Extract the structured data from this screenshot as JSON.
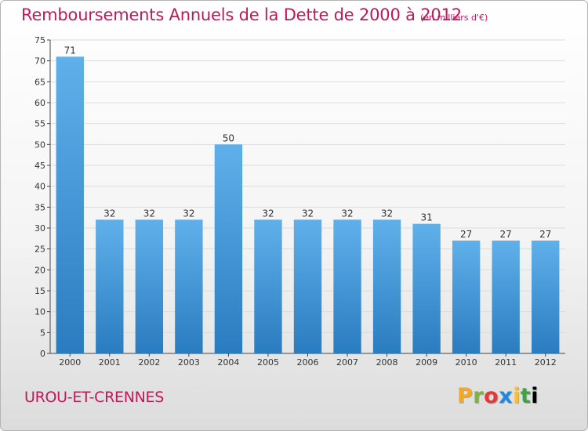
{
  "header": {
    "title": "Remboursements Annuels de la Dette de 2000 à 2012",
    "subtitle": "(en milliers d'€)"
  },
  "footer": {
    "commune": "UROU-ET-CRENNES",
    "logo_letters": [
      "P",
      "r",
      "o",
      "x",
      "i",
      "t",
      "i"
    ]
  },
  "colors": {
    "bar_top": "#5fb0ea",
    "bar_bottom": "#2a7cc0",
    "title": "#c2185b",
    "grid": "#dddddd"
  },
  "chart_data": {
    "type": "bar",
    "title": "Remboursements Annuels de la Dette de 2000 à 2012",
    "subtitle": "(en milliers d'€)",
    "categories": [
      "2000",
      "2001",
      "2002",
      "2003",
      "2004",
      "2005",
      "2006",
      "2007",
      "2008",
      "2009",
      "2010",
      "2011",
      "2012"
    ],
    "values": [
      71,
      32,
      32,
      32,
      50,
      32,
      32,
      32,
      32,
      31,
      27,
      27,
      27
    ],
    "ylim": [
      0,
      75
    ],
    "yticks": [
      0,
      5,
      10,
      15,
      20,
      25,
      30,
      35,
      40,
      45,
      50,
      55,
      60,
      65,
      70,
      75
    ],
    "grid": true,
    "data_labels": true
  }
}
